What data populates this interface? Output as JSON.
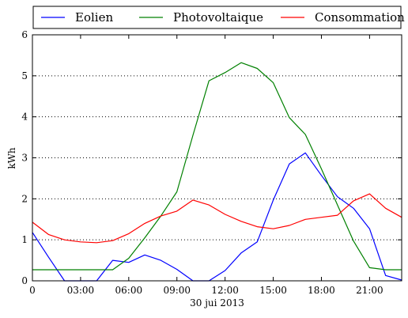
{
  "chart_data": {
    "type": "line",
    "xlabel": "30 jui 2013",
    "ylabel": "kWh",
    "ylim": [
      0,
      6
    ],
    "xlim": [
      0,
      23
    ],
    "grid": "horizontal dotted",
    "legend_placement": "top, above plot",
    "x_tick_labels": [
      "0",
      "03:00",
      "06:00",
      "09:00",
      "12:00",
      "15:00",
      "18:00",
      "21:00"
    ],
    "y_tick_labels": [
      "0",
      "1",
      "2",
      "3",
      "4",
      "5",
      "6"
    ],
    "x": [
      0,
      1,
      2,
      3,
      4,
      5,
      6,
      7,
      8,
      9,
      10,
      11,
      12,
      13,
      14,
      15,
      16,
      17,
      18,
      19,
      20,
      21,
      22,
      23
    ],
    "series": [
      {
        "name": "Eolien",
        "color": "#0000ff",
        "values": [
          1.18,
          0.58,
          0.0,
          0.0,
          0.0,
          0.5,
          0.45,
          0.63,
          0.5,
          0.28,
          0.0,
          0.0,
          0.25,
          0.68,
          0.95,
          1.97,
          2.85,
          3.12,
          2.57,
          2.05,
          1.77,
          1.27,
          0.13,
          0.02
        ]
      },
      {
        "name": "Photovoltaique",
        "color": "#008000",
        "values": [
          0.27,
          0.27,
          0.27,
          0.27,
          0.27,
          0.27,
          0.55,
          1.05,
          1.58,
          2.17,
          3.55,
          4.88,
          5.08,
          5.32,
          5.18,
          4.83,
          3.98,
          3.57,
          2.73,
          1.85,
          0.97,
          0.32,
          0.27,
          0.27
        ]
      },
      {
        "name": "Consommation",
        "color": "#ff0000",
        "values": [
          1.43,
          1.13,
          1.0,
          0.95,
          0.93,
          0.98,
          1.15,
          1.4,
          1.58,
          1.7,
          1.97,
          1.85,
          1.62,
          1.45,
          1.32,
          1.27,
          1.35,
          1.5,
          1.55,
          1.6,
          1.95,
          2.12,
          1.77,
          1.55
        ]
      }
    ]
  }
}
